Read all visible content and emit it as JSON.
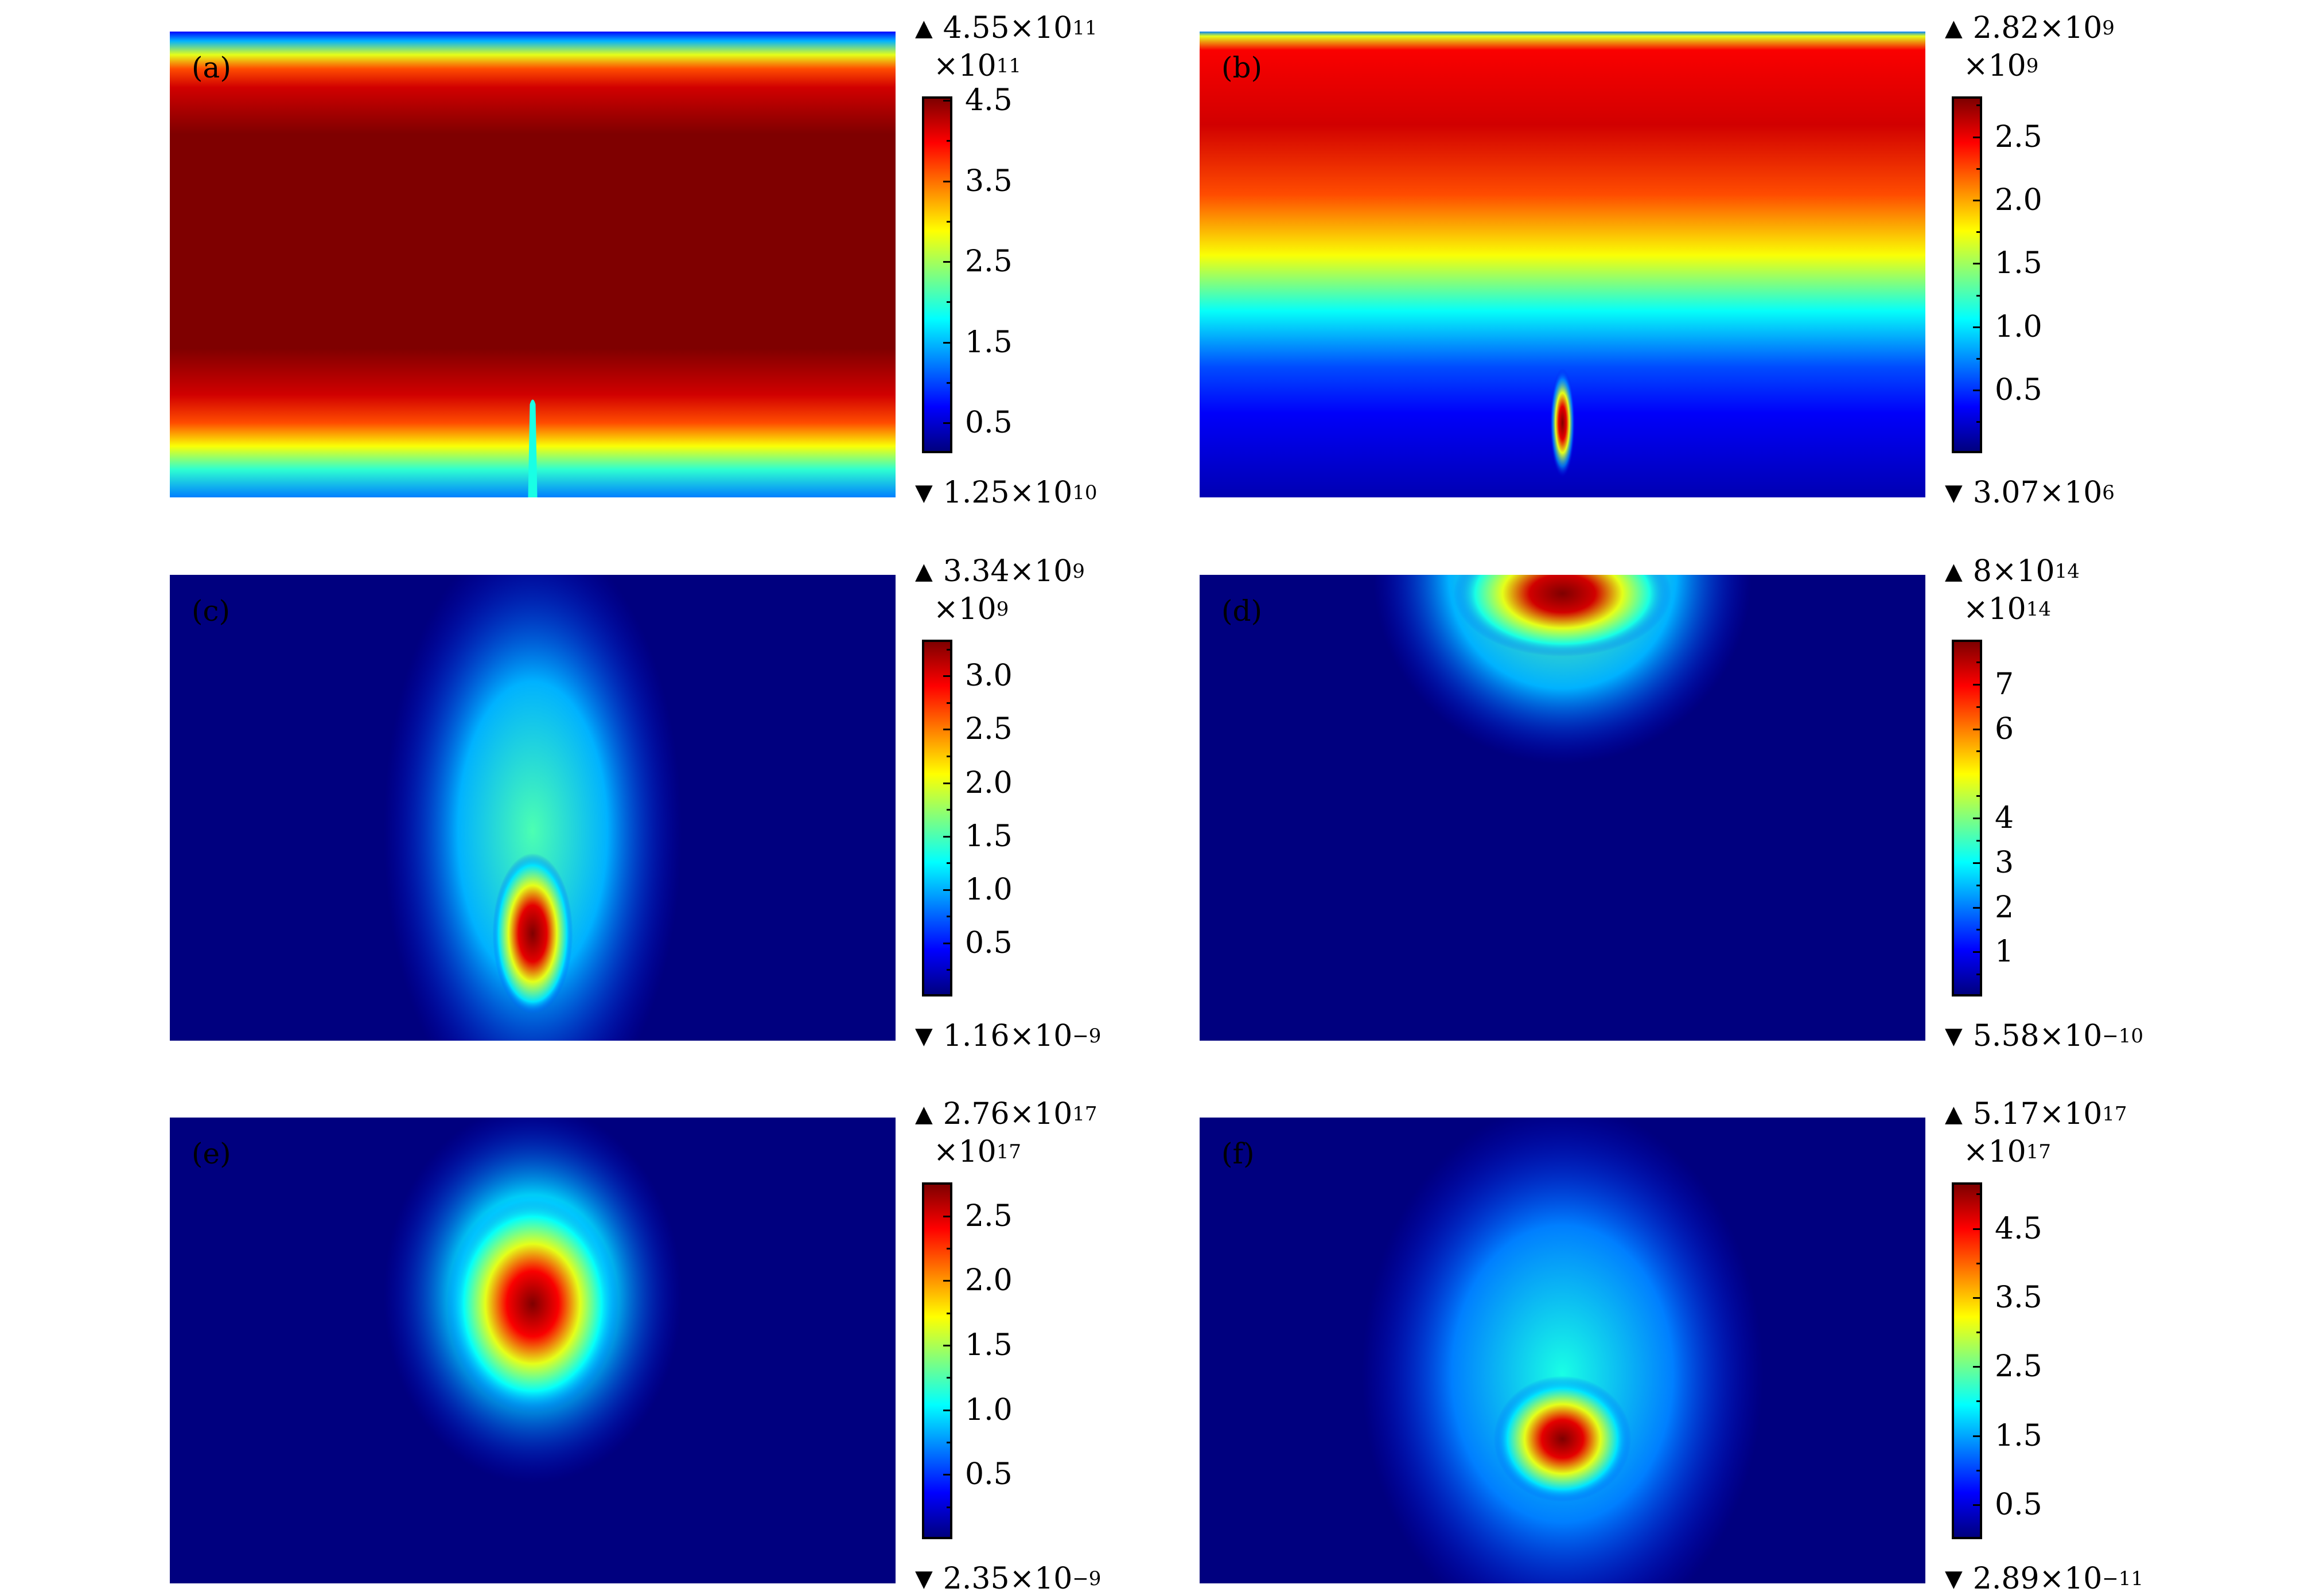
{
  "colormap": {
    "name": "jet",
    "stops": [
      "#00007f",
      "#0000ff",
      "#007fff",
      "#00ffff",
      "#7fff7f",
      "#ffff00",
      "#ff7f00",
      "#ff0000",
      "#7f0000"
    ]
  },
  "chart_data": [
    {
      "type": "heatmap",
      "panel_label": "(a)",
      "max": {
        "mantissa": "4.55",
        "exponent": "11"
      },
      "min": {
        "mantissa": "1.25",
        "exponent": "10"
      },
      "multiplier_exponent": "11",
      "colorbar_range": [
        0.125,
        4.55
      ],
      "colorbar_ticks": [
        {
          "value": 0.5,
          "label": "0.5"
        },
        {
          "value": 1.5,
          "label": "1.5"
        },
        {
          "value": 2.5,
          "label": "2.5"
        },
        {
          "value": 3.5,
          "label": "3.5"
        },
        {
          "value": 4.5,
          "label": "4.5"
        }
      ],
      "colorbar_minor_ticks": [
        1.0,
        2.0,
        3.0,
        4.0
      ]
    },
    {
      "type": "heatmap",
      "panel_label": "(b)",
      "max": {
        "mantissa": "2.82",
        "exponent": "9"
      },
      "min": {
        "mantissa": "3.07",
        "exponent": "6"
      },
      "multiplier_exponent": "9",
      "colorbar_range": [
        0.00307,
        2.82
      ],
      "colorbar_ticks": [
        {
          "value": 0.5,
          "label": "0.5"
        },
        {
          "value": 1.0,
          "label": "1.0"
        },
        {
          "value": 1.5,
          "label": "1.5"
        },
        {
          "value": 2.0,
          "label": "2.0"
        },
        {
          "value": 2.5,
          "label": "2.5"
        }
      ],
      "colorbar_minor_ticks": [
        0.25,
        0.75,
        1.25,
        1.75,
        2.25,
        2.75
      ]
    },
    {
      "type": "heatmap",
      "panel_label": "(c)",
      "max": {
        "mantissa": "3.34",
        "exponent": "9"
      },
      "min": {
        "mantissa": "1.16",
        "exponent": "−9"
      },
      "multiplier_exponent": "9",
      "colorbar_range": [
        0,
        3.34
      ],
      "colorbar_ticks": [
        {
          "value": 0.5,
          "label": "0.5"
        },
        {
          "value": 1.0,
          "label": "1.0"
        },
        {
          "value": 1.5,
          "label": "1.5"
        },
        {
          "value": 2.0,
          "label": "2.0"
        },
        {
          "value": 2.5,
          "label": "2.5"
        },
        {
          "value": 3.0,
          "label": "3.0"
        }
      ],
      "colorbar_minor_ticks": [
        0.25,
        0.75,
        1.25,
        1.75,
        2.25,
        2.75,
        3.25
      ]
    },
    {
      "type": "heatmap",
      "panel_label": "(d)",
      "max": {
        "mantissa": "8",
        "exponent": "14"
      },
      "min": {
        "mantissa": "5.58",
        "exponent": "−10"
      },
      "multiplier_exponent": "14",
      "colorbar_range": [
        0,
        8
      ],
      "colorbar_ticks": [
        {
          "value": 1,
          "label": "1"
        },
        {
          "value": 2,
          "label": "2"
        },
        {
          "value": 3,
          "label": "3"
        },
        {
          "value": 4,
          "label": "4"
        },
        {
          "value": 6,
          "label": "6"
        },
        {
          "value": 7,
          "label": "7"
        }
      ],
      "colorbar_minor_ticks": [
        0.5,
        1.5,
        2.5,
        3.5,
        4.5,
        5.5,
        6.5,
        7.5
      ]
    },
    {
      "type": "heatmap",
      "panel_label": "(e)",
      "max": {
        "mantissa": "2.76",
        "exponent": "17"
      },
      "min": {
        "mantissa": "2.35",
        "exponent": "−9"
      },
      "multiplier_exponent": "17",
      "colorbar_range": [
        0,
        2.76
      ],
      "colorbar_ticks": [
        {
          "value": 0.5,
          "label": "0.5"
        },
        {
          "value": 1.0,
          "label": "1.0"
        },
        {
          "value": 1.5,
          "label": "1.5"
        },
        {
          "value": 2.0,
          "label": "2.0"
        },
        {
          "value": 2.5,
          "label": "2.5"
        }
      ],
      "colorbar_minor_ticks": [
        0.25,
        0.75,
        1.25,
        1.75,
        2.25
      ]
    },
    {
      "type": "heatmap",
      "panel_label": "(f)",
      "max": {
        "mantissa": "5.17",
        "exponent": "17"
      },
      "min": {
        "mantissa": "2.89",
        "exponent": "−11"
      },
      "multiplier_exponent": "17",
      "colorbar_range": [
        0,
        5.17
      ],
      "colorbar_ticks": [
        {
          "value": 0.5,
          "label": "0.5"
        },
        {
          "value": 1.5,
          "label": "1.5"
        },
        {
          "value": 2.5,
          "label": "2.5"
        },
        {
          "value": 3.5,
          "label": "3.5"
        },
        {
          "value": 4.5,
          "label": "4.5"
        }
      ],
      "colorbar_minor_ticks": [
        1.0,
        2.0,
        3.0,
        4.0,
        5.0
      ]
    }
  ]
}
